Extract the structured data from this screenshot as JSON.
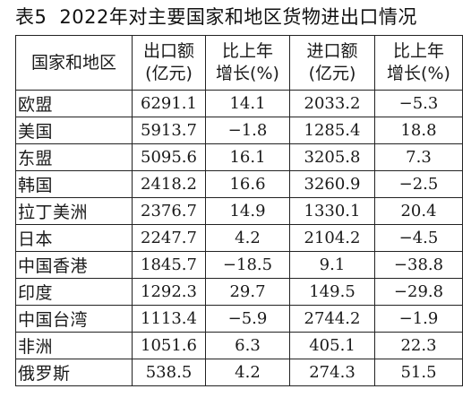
{
  "title": {
    "table_number": "表5",
    "text": "2022年对主要国家和地区货物进出口情况"
  },
  "columns": [
    {
      "line1": "国家和地区",
      "line2": ""
    },
    {
      "line1": "出口额",
      "line2": "(亿元)"
    },
    {
      "line1": "比上年",
      "line2": "增长(%)"
    },
    {
      "line1": "进口额",
      "line2": "(亿元)"
    },
    {
      "line1": "比上年",
      "line2": "增长(%)"
    }
  ],
  "rows": [
    {
      "region": "欧盟",
      "export": "6291.1",
      "export_growth": "14.1",
      "import": "2033.2",
      "import_growth": "−5.3"
    },
    {
      "region": "美国",
      "export": "5913.7",
      "export_growth": "−1.8",
      "import": "1285.4",
      "import_growth": "18.8"
    },
    {
      "region": "东盟",
      "export": "5095.6",
      "export_growth": "16.1",
      "import": "3205.8",
      "import_growth": "7.3"
    },
    {
      "region": "韩国",
      "export": "2418.2",
      "export_growth": "16.6",
      "import": "3260.9",
      "import_growth": "−2.5"
    },
    {
      "region": "拉丁美洲",
      "export": "2376.7",
      "export_growth": "14.9",
      "import": "1330.1",
      "import_growth": "20.4"
    },
    {
      "region": "日本",
      "export": "2247.7",
      "export_growth": "4.2",
      "import": "2104.2",
      "import_growth": "−4.5"
    },
    {
      "region": "中国香港",
      "export": "1845.7",
      "export_growth": "−18.5",
      "import": "9.1",
      "import_growth": "−38.8"
    },
    {
      "region": "印度",
      "export": "1292.3",
      "export_growth": "29.7",
      "import": "149.5",
      "import_growth": "−29.8"
    },
    {
      "region": "中国台湾",
      "export": "1113.4",
      "export_growth": "−5.9",
      "import": "2744.2",
      "import_growth": "−1.9"
    },
    {
      "region": "非洲",
      "export": "1051.6",
      "export_growth": "6.3",
      "import": "405.1",
      "import_growth": "22.3"
    },
    {
      "region": "俄罗斯",
      "export": "538.5",
      "export_growth": "4.2",
      "import": "274.3",
      "import_growth": "51.5"
    }
  ]
}
